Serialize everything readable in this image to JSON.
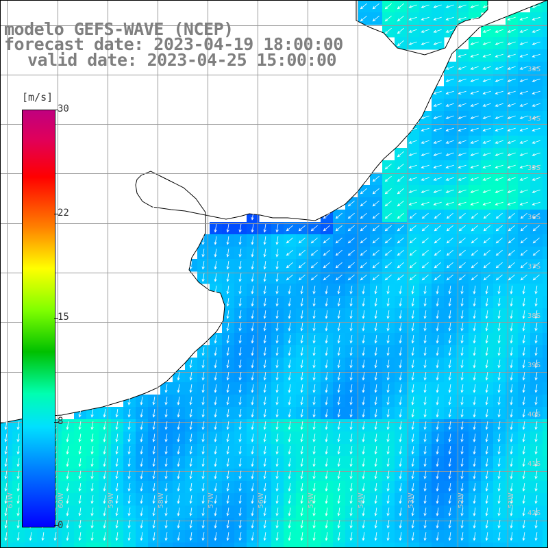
{
  "title": {
    "line1": "modelo GEFS-WAVE (NCEP)",
    "line2": "forecast date: 2023-04-19 18:00:00",
    "line3": "valid date: 2023-04-25 15:00:00"
  },
  "colorbar": {
    "unit": "[m/s]",
    "ticks": [
      "30",
      "22",
      "15",
      "8",
      "0"
    ],
    "tick_values": [
      30,
      22,
      15,
      8,
      0
    ],
    "min": 0,
    "max": 30,
    "colors": [
      "#0000ff",
      "#0080ff",
      "#00e0ff",
      "#00ffb0",
      "#00c000",
      "#80ff00",
      "#ffff00",
      "#ff8000",
      "#ff0000",
      "#e0005a",
      "#c0007f"
    ]
  },
  "map": {
    "land_color": "#ffffff",
    "coast_color": "#000000",
    "grid_color": "#999999",
    "arrow_color": "#ffffff",
    "lon_labels": [
      "61W",
      "60W",
      "59W",
      "58W",
      "57W",
      "56W",
      "55W",
      "54W",
      "53W",
      "52W",
      "51W"
    ],
    "lat_labels": [
      "33S",
      "34S",
      "35S",
      "36S",
      "37S",
      "38S",
      "39S",
      "40S",
      "41S",
      "42S"
    ],
    "wind_speed_range_ms": [
      3,
      9
    ]
  }
}
